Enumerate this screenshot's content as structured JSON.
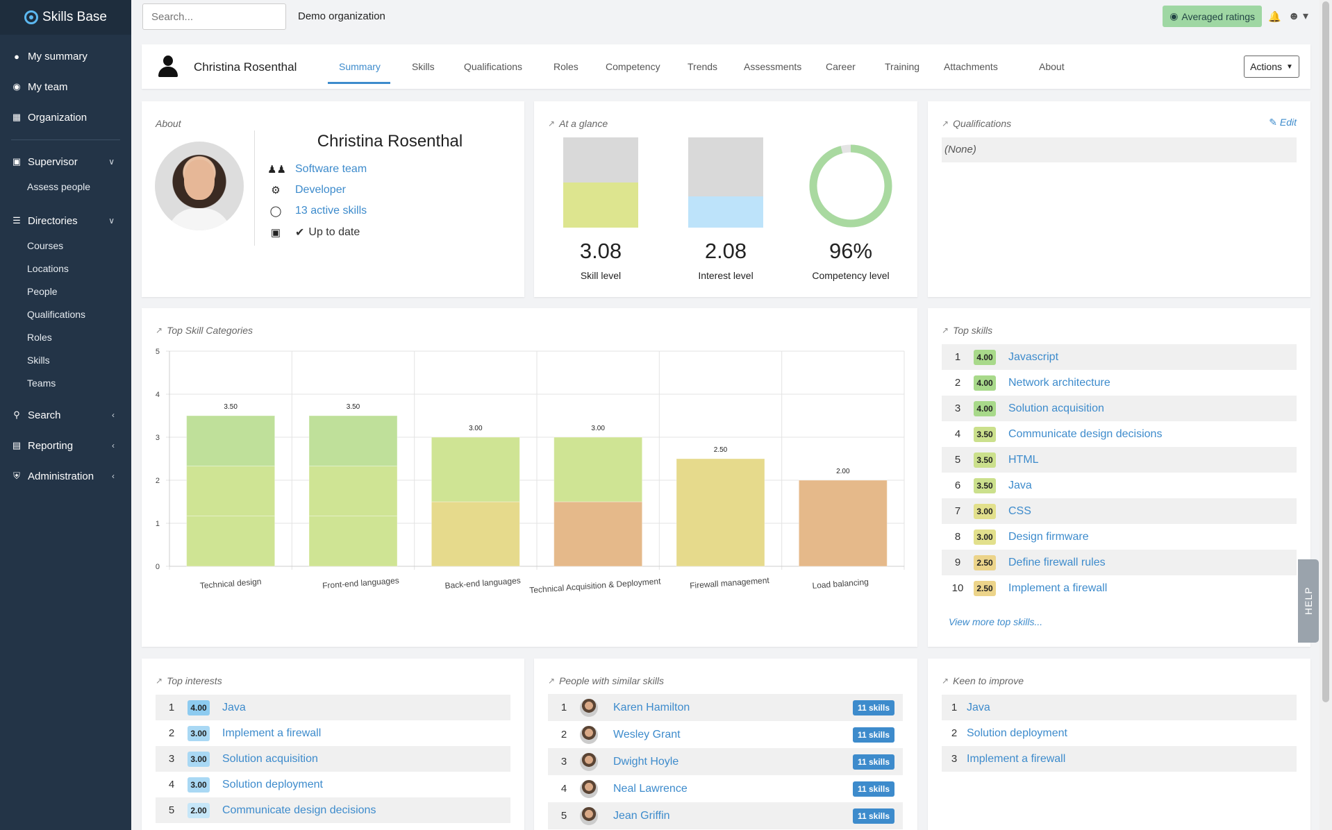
{
  "app": {
    "brand": "Skills Base"
  },
  "sidebar": {
    "main": [
      {
        "label": "My summary",
        "icon": "user-circle-icon"
      },
      {
        "label": "My team",
        "icon": "globe-icon"
      },
      {
        "label": "Organization",
        "icon": "building-icon"
      }
    ],
    "supervisor": {
      "label": "Supervisor",
      "items": [
        "Assess people"
      ]
    },
    "directories": {
      "label": "Directories",
      "items": [
        "Courses",
        "Locations",
        "People",
        "Qualifications",
        "Roles",
        "Skills",
        "Teams"
      ]
    },
    "bottom": [
      {
        "label": "Search"
      },
      {
        "label": "Reporting"
      },
      {
        "label": "Administration"
      }
    ]
  },
  "topbar": {
    "search_placeholder": "Search...",
    "organization": "Demo organization",
    "averaged_ratings": "Averaged ratings"
  },
  "header": {
    "name": "Christina Rosenthal",
    "tabs": [
      "Summary",
      "Skills",
      "Qualifications",
      "Roles",
      "Competency",
      "Trends",
      "Assessments",
      "Career",
      "Training",
      "Attachments",
      "About"
    ],
    "active_tab": "Summary",
    "actions": "Actions"
  },
  "about": {
    "title": "About",
    "name": "Christina Rosenthal",
    "team": "Software team",
    "role": "Developer",
    "active_skills": "13 active skills",
    "status": "Up to date"
  },
  "glance": {
    "title": "At a glance",
    "skill_value": "3.08",
    "skill_label": "Skill level",
    "skill_fraction": 0.5,
    "interest_value": "2.08",
    "interest_label": "Interest level",
    "interest_fraction": 0.35,
    "competency_value": "96%",
    "competency_label": "Competency level",
    "competency_fraction": 0.96
  },
  "qualifications": {
    "title": "Qualifications",
    "edit": "Edit",
    "none": "(None)"
  },
  "chart_data": {
    "type": "bar",
    "title": "Top Skill Categories",
    "categories": [
      "Technical design",
      "Front-end languages",
      "Back-end languages",
      "Technical Acquisition & Deployment",
      "Firewall management",
      "Load balancing"
    ],
    "values": [
      3.5,
      3.5,
      3.0,
      3.0,
      2.5,
      2.0
    ],
    "value_labels": [
      "3.50",
      "3.50",
      "3.00",
      "3.00",
      "2.50",
      "2.00"
    ],
    "ylim": [
      0,
      5
    ],
    "yticks": [
      "0",
      "1",
      "2",
      "3",
      "4",
      "5"
    ],
    "grid": true,
    "colors": {
      "green": "#bfe09a",
      "lime": "#cfe494",
      "yellow": "#e6da8c",
      "orange": "#e5b98a"
    }
  },
  "top_skills": {
    "title": "Top skills",
    "items": [
      {
        "rank": "1",
        "score": "4.00",
        "name": "Javascript",
        "color": "#a8d98a"
      },
      {
        "rank": "2",
        "score": "4.00",
        "name": "Network architecture",
        "color": "#a8d98a"
      },
      {
        "rank": "3",
        "score": "4.00",
        "name": "Solution acquisition",
        "color": "#a8d98a"
      },
      {
        "rank": "4",
        "score": "3.50",
        "name": "Communicate design decisions",
        "color": "#cbe08c"
      },
      {
        "rank": "5",
        "score": "3.50",
        "name": "HTML",
        "color": "#cbe08c"
      },
      {
        "rank": "6",
        "score": "3.50",
        "name": "Java",
        "color": "#cbe08c"
      },
      {
        "rank": "7",
        "score": "3.00",
        "name": "CSS",
        "color": "#e2e08c"
      },
      {
        "rank": "8",
        "score": "3.00",
        "name": "Design firmware",
        "color": "#e2e08c"
      },
      {
        "rank": "9",
        "score": "2.50",
        "name": "Define firewall rules",
        "color": "#ecd48a"
      },
      {
        "rank": "10",
        "score": "2.50",
        "name": "Implement a firewall",
        "color": "#ecd48a"
      }
    ],
    "view_more": "View more top skills..."
  },
  "top_interests": {
    "title": "Top interests",
    "items": [
      {
        "rank": "1",
        "score": "4.00",
        "name": "Java",
        "color": "#8dcbf0"
      },
      {
        "rank": "2",
        "score": "3.00",
        "name": "Implement a firewall",
        "color": "#a9d8f4"
      },
      {
        "rank": "3",
        "score": "3.00",
        "name": "Solution acquisition",
        "color": "#a9d8f4"
      },
      {
        "rank": "4",
        "score": "3.00",
        "name": "Solution deployment",
        "color": "#a9d8f4"
      },
      {
        "rank": "5",
        "score": "2.00",
        "name": "Communicate design decisions",
        "color": "#c6e6f8"
      }
    ]
  },
  "similar_people": {
    "title": "People with similar skills",
    "items": [
      {
        "rank": "1",
        "name": "Karen Hamilton",
        "skills": "11 skills"
      },
      {
        "rank": "2",
        "name": "Wesley Grant",
        "skills": "11 skills"
      },
      {
        "rank": "3",
        "name": "Dwight Hoyle",
        "skills": "11 skills"
      },
      {
        "rank": "4",
        "name": "Neal Lawrence",
        "skills": "11 skills"
      },
      {
        "rank": "5",
        "name": "Jean Griffin",
        "skills": "11 skills"
      }
    ]
  },
  "keen_to_improve": {
    "title": "Keen to improve",
    "items": [
      {
        "rank": "1",
        "name": "Java"
      },
      {
        "rank": "2",
        "name": "Solution deployment"
      },
      {
        "rank": "3",
        "name": "Implement a firewall"
      }
    ]
  },
  "help": {
    "label": "HELP"
  }
}
